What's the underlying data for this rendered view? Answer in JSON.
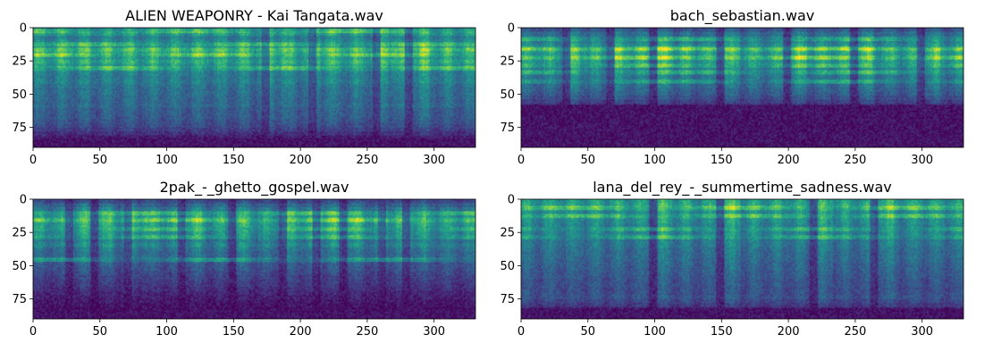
{
  "chart_data": [
    {
      "type": "heatmap",
      "title": "ALIEN WEAPONRY - Kai Tangata.wav",
      "xlim": [
        0,
        331
      ],
      "ylim": [
        90,
        0
      ],
      "xticks": [
        "0",
        "50",
        "100",
        "150",
        "200",
        "250",
        "300"
      ],
      "yticks": [
        "0",
        "25",
        "50",
        "75"
      ],
      "colormap": "viridis",
      "profile": [
        0.55,
        0.62,
        0.5,
        0.55,
        0.58,
        0.8,
        0.68,
        0.62,
        0.7,
        0.62,
        0.55,
        0.5,
        0.48,
        0.5,
        0.45,
        0.42,
        0.42,
        0.4,
        0.38,
        0.4,
        0.35,
        0.34,
        0.33,
        0.3,
        0.27,
        0.22,
        0.16,
        0.1,
        0.06,
        0.04
      ],
      "bands": [
        2,
        12,
        20,
        30
      ],
      "floor_row": 83,
      "breaks": [
        175,
        210,
        258,
        282
      ]
    },
    {
      "type": "heatmap",
      "title": "bach_sebastian.wav",
      "xlim": [
        0,
        331
      ],
      "ylim": [
        90,
        0
      ],
      "xticks": [
        "0",
        "50",
        "100",
        "150",
        "200",
        "250",
        "300"
      ],
      "yticks": [
        "0",
        "25",
        "50",
        "75"
      ],
      "colormap": "viridis",
      "profile": [
        0.3,
        0.4,
        0.45,
        0.5,
        0.55,
        0.72,
        0.62,
        0.68,
        0.6,
        0.55,
        0.5,
        0.48,
        0.45,
        0.42,
        0.4,
        0.36,
        0.33,
        0.28,
        0.22,
        0.16,
        0.1,
        0.06,
        0.05,
        0.04,
        0.04,
        0.03,
        0.03,
        0.03,
        0.03,
        0.03
      ],
      "bands": [
        8,
        15,
        22,
        28,
        33,
        40
      ],
      "floor_row": 58,
      "breaks": [
        35,
        68,
        100,
        150,
        200,
        250,
        300
      ]
    },
    {
      "type": "heatmap",
      "title": "2pak_-_ghetto_gospel.wav",
      "xlim": [
        0,
        331
      ],
      "ylim": [
        90,
        0
      ],
      "xticks": [
        "0",
        "50",
        "100",
        "150",
        "200",
        "250",
        "300"
      ],
      "yticks": [
        "0",
        "25",
        "50",
        "75"
      ],
      "colormap": "viridis",
      "profile": [
        0.25,
        0.35,
        0.45,
        0.55,
        0.6,
        0.65,
        0.6,
        0.52,
        0.55,
        0.48,
        0.45,
        0.5,
        0.42,
        0.38,
        0.4,
        0.35,
        0.3,
        0.28,
        0.25,
        0.22,
        0.2,
        0.18,
        0.15,
        0.12,
        0.1,
        0.08,
        0.06,
        0.04,
        0.03,
        0.03
      ],
      "bands": [
        10,
        15,
        22,
        28,
        45
      ],
      "floor_row": 83,
      "breaks": [
        28,
        47,
        72,
        112,
        150,
        188,
        213,
        233,
        262,
        280
      ]
    },
    {
      "type": "heatmap",
      "title": "lana_del_rey_-_summertime_sadness.wav",
      "xlim": [
        0,
        331
      ],
      "ylim": [
        90,
        0
      ],
      "xticks": [
        "0",
        "50",
        "100",
        "150",
        "200",
        "250",
        "300"
      ],
      "yticks": [
        "0",
        "25",
        "50",
        "75"
      ],
      "colormap": "viridis",
      "profile": [
        0.62,
        0.65,
        0.6,
        0.55,
        0.58,
        0.55,
        0.52,
        0.5,
        0.52,
        0.48,
        0.46,
        0.45,
        0.42,
        0.4,
        0.4,
        0.38,
        0.36,
        0.35,
        0.33,
        0.32,
        0.3,
        0.3,
        0.28,
        0.28,
        0.3,
        0.25,
        0.2,
        0.12,
        0.05,
        0.03
      ],
      "bands": [
        6,
        12,
        22,
        28
      ],
      "floor_row": 82,
      "breaks": [
        100,
        150,
        220,
        265
      ]
    }
  ]
}
